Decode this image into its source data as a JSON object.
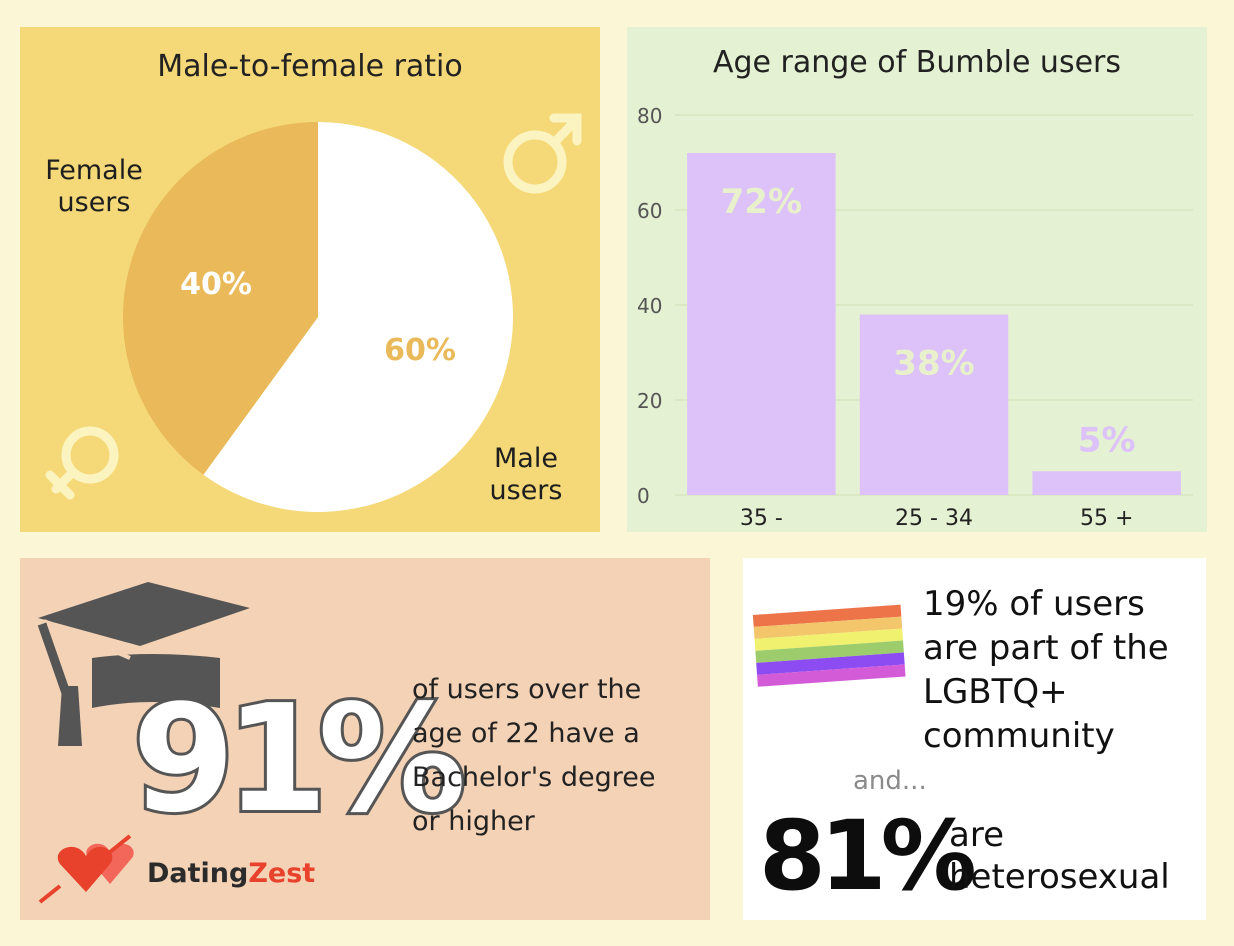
{
  "chart_data": [
    {
      "type": "pie",
      "title": "Male-to-female ratio",
      "slices": [
        {
          "label": "Female users",
          "value": 40,
          "value_label": "40%",
          "color": "#e9b95a"
        },
        {
          "label": "Male users",
          "value": 60,
          "value_label": "60%",
          "color": "#ffffff"
        }
      ],
      "labels": {
        "female_line1": "Female",
        "female_line2": "users",
        "male_line1": "Male",
        "male_line2": "users"
      },
      "value_label_colors": {
        "female": "#ffffff",
        "male": "#e9b95a"
      }
    },
    {
      "type": "bar",
      "title": "Age range of Bumble users",
      "categories": [
        "35 -",
        "25 - 34",
        "55 +"
      ],
      "values": [
        72,
        38,
        5
      ],
      "value_labels": [
        "72%",
        "38%",
        "5%"
      ],
      "ylim": [
        0,
        80
      ],
      "yticks": [
        0,
        20,
        40,
        60,
        80
      ],
      "grid": true,
      "bar_color": "#dcc2f8",
      "label_color": "#e8f0cc"
    }
  ],
  "education": {
    "percent": "91%",
    "text_lines": [
      "of users over the",
      "age of 22 have a",
      "Bachelor's degree",
      "or higher"
    ]
  },
  "lgbt": {
    "text_lines": [
      "19% of users",
      "are part of the",
      "LGBTQ+",
      "community"
    ],
    "connector": "and...",
    "hetero_percent": "81%",
    "hetero_lines": [
      "are",
      "heterosexual"
    ]
  },
  "brand": {
    "name_part1": "Dating",
    "name_part2": "Zest"
  },
  "colors": {
    "background": "#fbf7d6",
    "pie_panel": "#f5d978",
    "bar_panel": "#e4f1d2",
    "edu_panel": "#f4d2b6",
    "brand_red": "#e8412c",
    "cap": "#555555",
    "symbol": "#fcf4c0"
  },
  "icons": [
    "male-symbol-icon",
    "female-symbol-icon",
    "graduation-cap-icon",
    "rainbow-flag-icon",
    "hearts-logo-icon"
  ]
}
